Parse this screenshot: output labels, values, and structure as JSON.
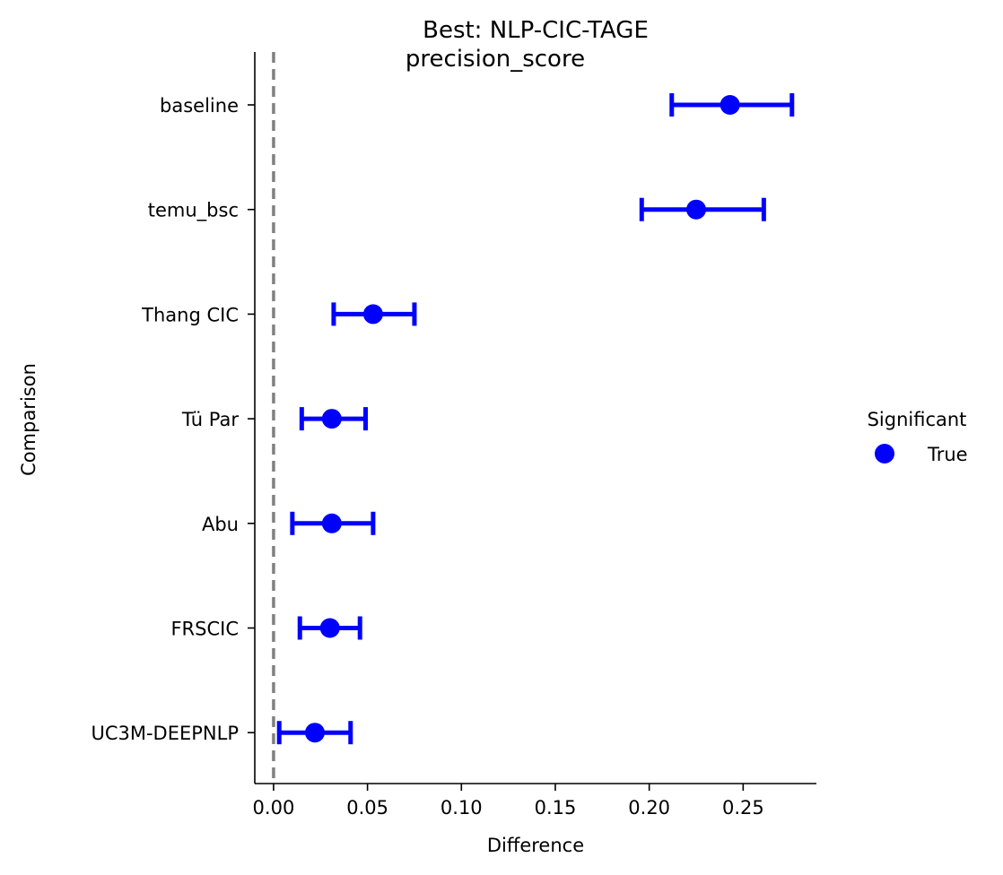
{
  "chart_data": {
    "type": "scatter",
    "title": "Best: NLP-CIC-TAGE",
    "subtitle": "precision_score",
    "xlabel": "Difference",
    "ylabel": "Comparison",
    "xlim": [
      -0.01,
      0.289
    ],
    "xticks": [
      0.0,
      0.05,
      0.1,
      0.15,
      0.2,
      0.25
    ],
    "xtick_labels": [
      "0.00",
      "0.05",
      "0.10",
      "0.15",
      "0.20",
      "0.25"
    ],
    "reference_line": {
      "x": 0,
      "style": "dashed",
      "color": "#808080"
    },
    "grid": false,
    "categories": [
      "baseline",
      "temu_bsc",
      "Thang CIC",
      "Tü Par",
      "Abu",
      "FRSCIC",
      "UC3M-DEEPNLP"
    ],
    "series": [
      {
        "name": "True",
        "color": "#0000ff",
        "values": [
          0.243,
          0.225,
          0.053,
          0.031,
          0.031,
          0.03,
          0.022
        ],
        "ci_low": [
          0.212,
          0.196,
          0.032,
          0.015,
          0.01,
          0.014,
          0.003
        ],
        "ci_high": [
          0.276,
          0.261,
          0.075,
          0.049,
          0.053,
          0.046,
          0.041
        ]
      }
    ],
    "legend": {
      "title": "Significant",
      "placement": "right",
      "entries": [
        "True"
      ]
    }
  }
}
